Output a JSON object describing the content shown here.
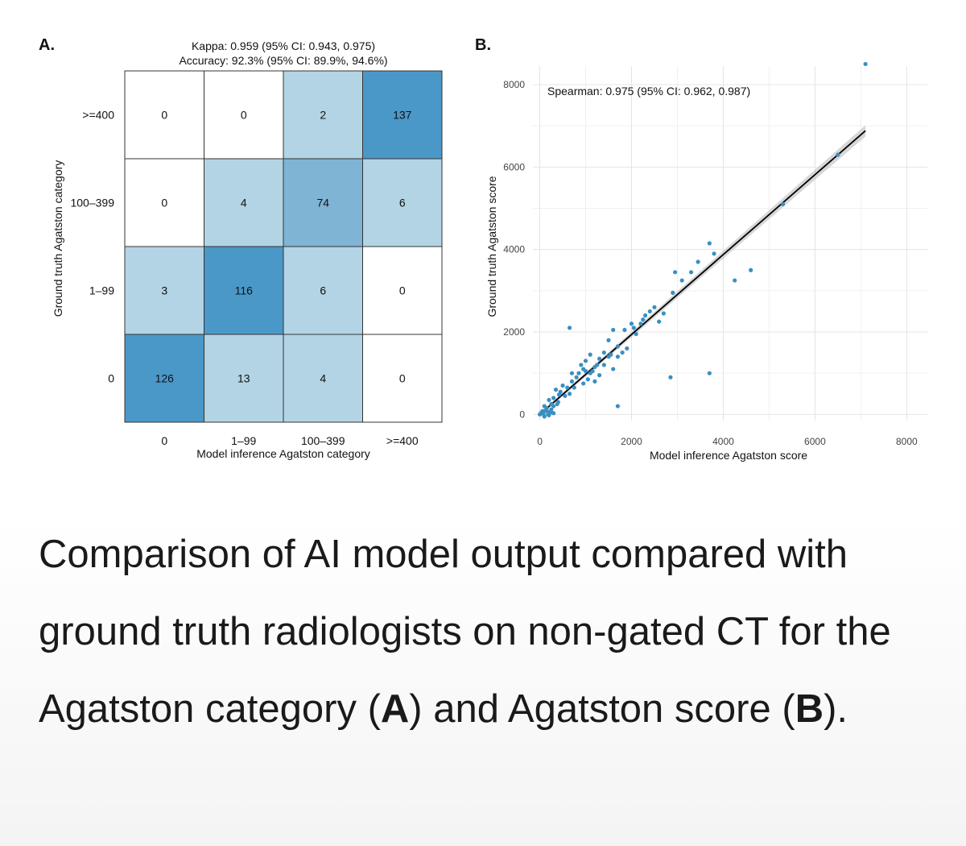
{
  "panel_a_label": "A.",
  "panel_b_label": "B.",
  "chart_data": [
    {
      "type": "heatmap",
      "title": "Kappa: 0.959 (95% CI: 0.943, 0.975)",
      "subtitle": "Accuracy: 92.3% (95% CI: 89.9%, 94.6%)",
      "xlabel": "Model inference Agatston category",
      "ylabel": "Ground truth Agatston category",
      "x_categories": [
        "0",
        "1–99",
        "100–399",
        ">=400"
      ],
      "y_categories": [
        ">=400",
        "100–399",
        "1–99",
        "0"
      ],
      "matrix": [
        [
          0,
          0,
          2,
          137
        ],
        [
          0,
          4,
          74,
          6
        ],
        [
          3,
          116,
          6,
          0
        ],
        [
          126,
          13,
          4,
          0
        ]
      ],
      "colors": {
        "zero": "#ffffff",
        "low": "#b3d4e4",
        "mid": "#7fb4d4",
        "high": "#4a98c8"
      }
    },
    {
      "type": "scatter",
      "annotation": "Spearman: 0.975 (95% CI: 0.962, 0.987)",
      "xlabel": "Model inference Agatston score",
      "ylabel": "Ground truth Agatston score",
      "xlim": [
        -150,
        8450
      ],
      "ylim": [
        -150,
        8450
      ],
      "x_ticks": [
        "0",
        "2000",
        "4000",
        "6000",
        "8000"
      ],
      "y_ticks": [
        "0",
        "2000",
        "4000",
        "6000",
        "8000"
      ],
      "point_color": "#3a8fc2",
      "fit_line": {
        "x": [
          0,
          7100
        ],
        "y": [
          0,
          6880
        ]
      },
      "points": [
        [
          7100,
          8500
        ],
        [
          6500,
          6300
        ],
        [
          5300,
          5100
        ],
        [
          3700,
          4150
        ],
        [
          3800,
          3900
        ],
        [
          4600,
          3500
        ],
        [
          4250,
          3250
        ],
        [
          3300,
          3450
        ],
        [
          2950,
          3450
        ],
        [
          3100,
          3250
        ],
        [
          2900,
          2950
        ],
        [
          3450,
          3700
        ],
        [
          2850,
          900
        ],
        [
          3700,
          1000
        ],
        [
          1700,
          200
        ],
        [
          650,
          2100
        ],
        [
          2500,
          2600
        ],
        [
          2400,
          2500
        ],
        [
          2700,
          2450
        ],
        [
          2300,
          2400
        ],
        [
          2600,
          2250
        ],
        [
          2200,
          2200
        ],
        [
          2050,
          2100
        ],
        [
          2100,
          1950
        ],
        [
          1850,
          2050
        ],
        [
          1600,
          2050
        ],
        [
          1500,
          1800
        ],
        [
          1700,
          1650
        ],
        [
          1800,
          1500
        ],
        [
          1500,
          1400
        ],
        [
          1300,
          1350
        ],
        [
          1400,
          1200
        ],
        [
          1200,
          1150
        ],
        [
          1100,
          1450
        ],
        [
          1000,
          1050
        ],
        [
          900,
          1200
        ],
        [
          1300,
          950
        ],
        [
          1600,
          1100
        ],
        [
          1700,
          1400
        ],
        [
          1900,
          1600
        ],
        [
          800,
          900
        ],
        [
          700,
          800
        ],
        [
          850,
          1000
        ],
        [
          950,
          750
        ],
        [
          1200,
          800
        ],
        [
          600,
          650
        ],
        [
          500,
          700
        ],
        [
          450,
          550
        ],
        [
          350,
          600
        ],
        [
          550,
          450
        ],
        [
          400,
          300
        ],
        [
          300,
          400
        ],
        [
          250,
          250
        ],
        [
          200,
          350
        ],
        [
          150,
          150
        ],
        [
          100,
          200
        ],
        [
          60,
          80
        ],
        [
          30,
          40
        ],
        [
          0,
          0
        ],
        [
          20,
          10
        ],
        [
          80,
          30
        ],
        [
          120,
          90
        ],
        [
          180,
          60
        ],
        [
          250,
          120
        ],
        [
          300,
          200
        ],
        [
          380,
          250
        ],
        [
          420,
          480
        ],
        [
          650,
          500
        ],
        [
          750,
          650
        ],
        [
          1000,
          1300
        ],
        [
          1100,
          1000
        ],
        [
          1250,
          1200
        ],
        [
          1400,
          1500
        ],
        [
          2000,
          2200
        ],
        [
          2250,
          2300
        ],
        [
          1550,
          1450
        ],
        [
          1050,
          850
        ],
        [
          950,
          1100
        ],
        [
          700,
          1000
        ],
        [
          1150,
          1050
        ],
        [
          180,
          0
        ],
        [
          100,
          -50
        ],
        [
          250,
          50
        ],
        [
          300,
          30
        ],
        [
          200,
          -20
        ]
      ]
    }
  ],
  "caption": {
    "part1": "Comparison of AI model output compared with ground truth radiologists on non-gated CT for the Agatston category (",
    "a": "A",
    "part2": ") and Agatston score (",
    "b": "B",
    "part3": ")."
  }
}
